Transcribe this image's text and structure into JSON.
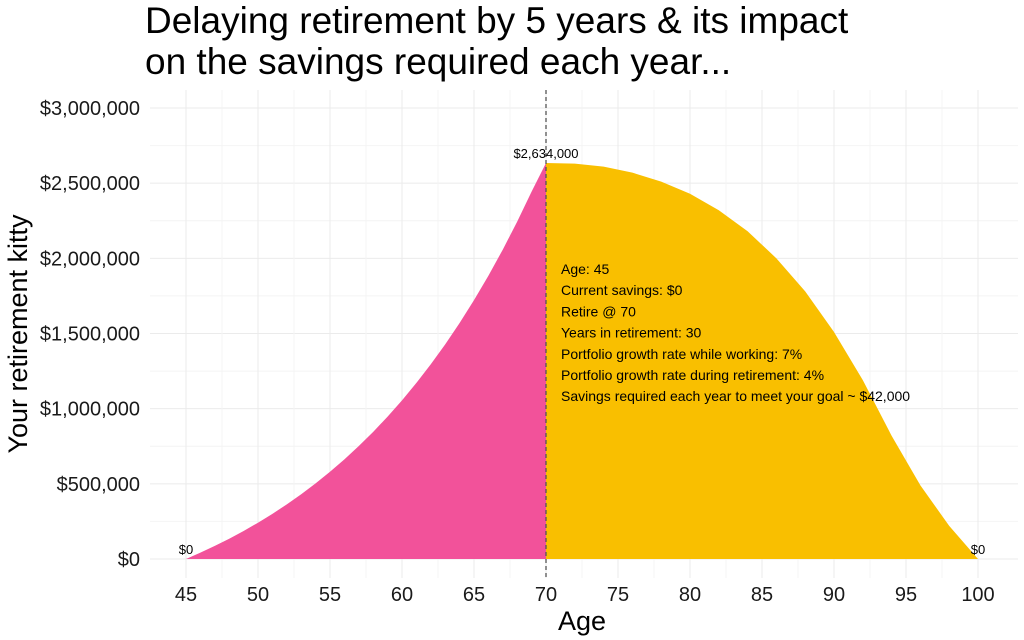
{
  "chart_data": {
    "type": "area",
    "title_lines": [
      "Delaying retirement by 5 years & its impact",
      "on the savings required each year..."
    ],
    "xlabel": "Age",
    "ylabel": "Your retirement kitty",
    "xlim": [
      45,
      100
    ],
    "ylim": [
      0,
      3000000
    ],
    "x_ticks": [
      45,
      50,
      55,
      60,
      65,
      70,
      75,
      80,
      85,
      90,
      95,
      100
    ],
    "y_ticks": [
      0,
      500000,
      1000000,
      1500000,
      2000000,
      2500000,
      3000000
    ],
    "y_tick_labels": [
      "$0",
      "$500,000",
      "$1,000,000",
      "$1,500,000",
      "$2,000,000",
      "$2,500,000",
      "$3,000,000"
    ],
    "grid": true,
    "retire_age": 70,
    "peak_value": 2634000,
    "series": [
      {
        "color": "#f2529a",
        "x": [
          45,
          46,
          47,
          48,
          49,
          50,
          51,
          52,
          53,
          54,
          55,
          56,
          57,
          58,
          59,
          60,
          61,
          62,
          63,
          64,
          65,
          66,
          67,
          68,
          69,
          70
        ],
        "y": [
          0,
          42000,
          86940,
          135026,
          186478,
          241531,
          300438,
          363469,
          430912,
          503076,
          580291,
          662912,
          751316,
          845908,
          947122,
          1055421,
          1171300,
          1295291,
          1427962,
          1569919,
          1721813,
          1884340,
          2058244,
          2244321,
          2443424,
          2634000
        ]
      },
      {
        "color": "#f9bf00",
        "x": [
          70,
          72,
          74,
          76,
          78,
          80,
          82,
          84,
          86,
          88,
          90,
          92,
          94,
          96,
          98,
          100
        ],
        "y": [
          2634000,
          2630000,
          2610000,
          2570000,
          2510000,
          2430000,
          2320000,
          2180000,
          2000000,
          1780000,
          1510000,
          1190000,
          820000,
          490000,
          220000,
          0
        ]
      }
    ],
    "data_labels": [
      {
        "text": "$0",
        "x": 45,
        "y": 0
      },
      {
        "text": "$2,634,000",
        "x": 70,
        "y": 2634000
      },
      {
        "text": "$0",
        "x": 100,
        "y": 0
      }
    ],
    "annotation_lines": [
      "Age: 45",
      "Current savings: $0",
      "Retire @ 70",
      "Years in retirement: 30",
      "Portfolio growth rate while working: 7%",
      "Portfolio growth rate during retirement: 4%",
      "Savings required each year to meet your goal ~ $42,000"
    ]
  }
}
